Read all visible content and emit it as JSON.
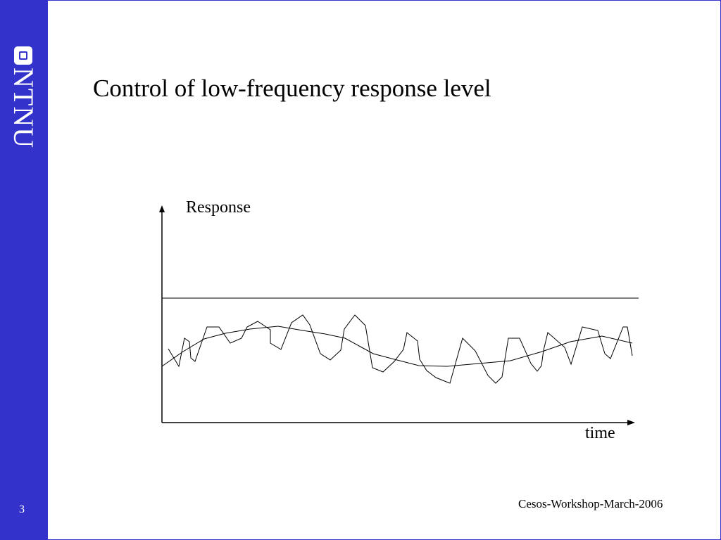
{
  "slide": {
    "title": "Control of low-frequency response level",
    "page_number": "3",
    "footer": "Cesos-Workshop-March-2006"
  },
  "brand": {
    "logo_text": "NTNU",
    "sidebar_color": "#3333cc"
  },
  "diagram": {
    "y_axis_label": "Response",
    "x_axis_label": "time"
  }
}
